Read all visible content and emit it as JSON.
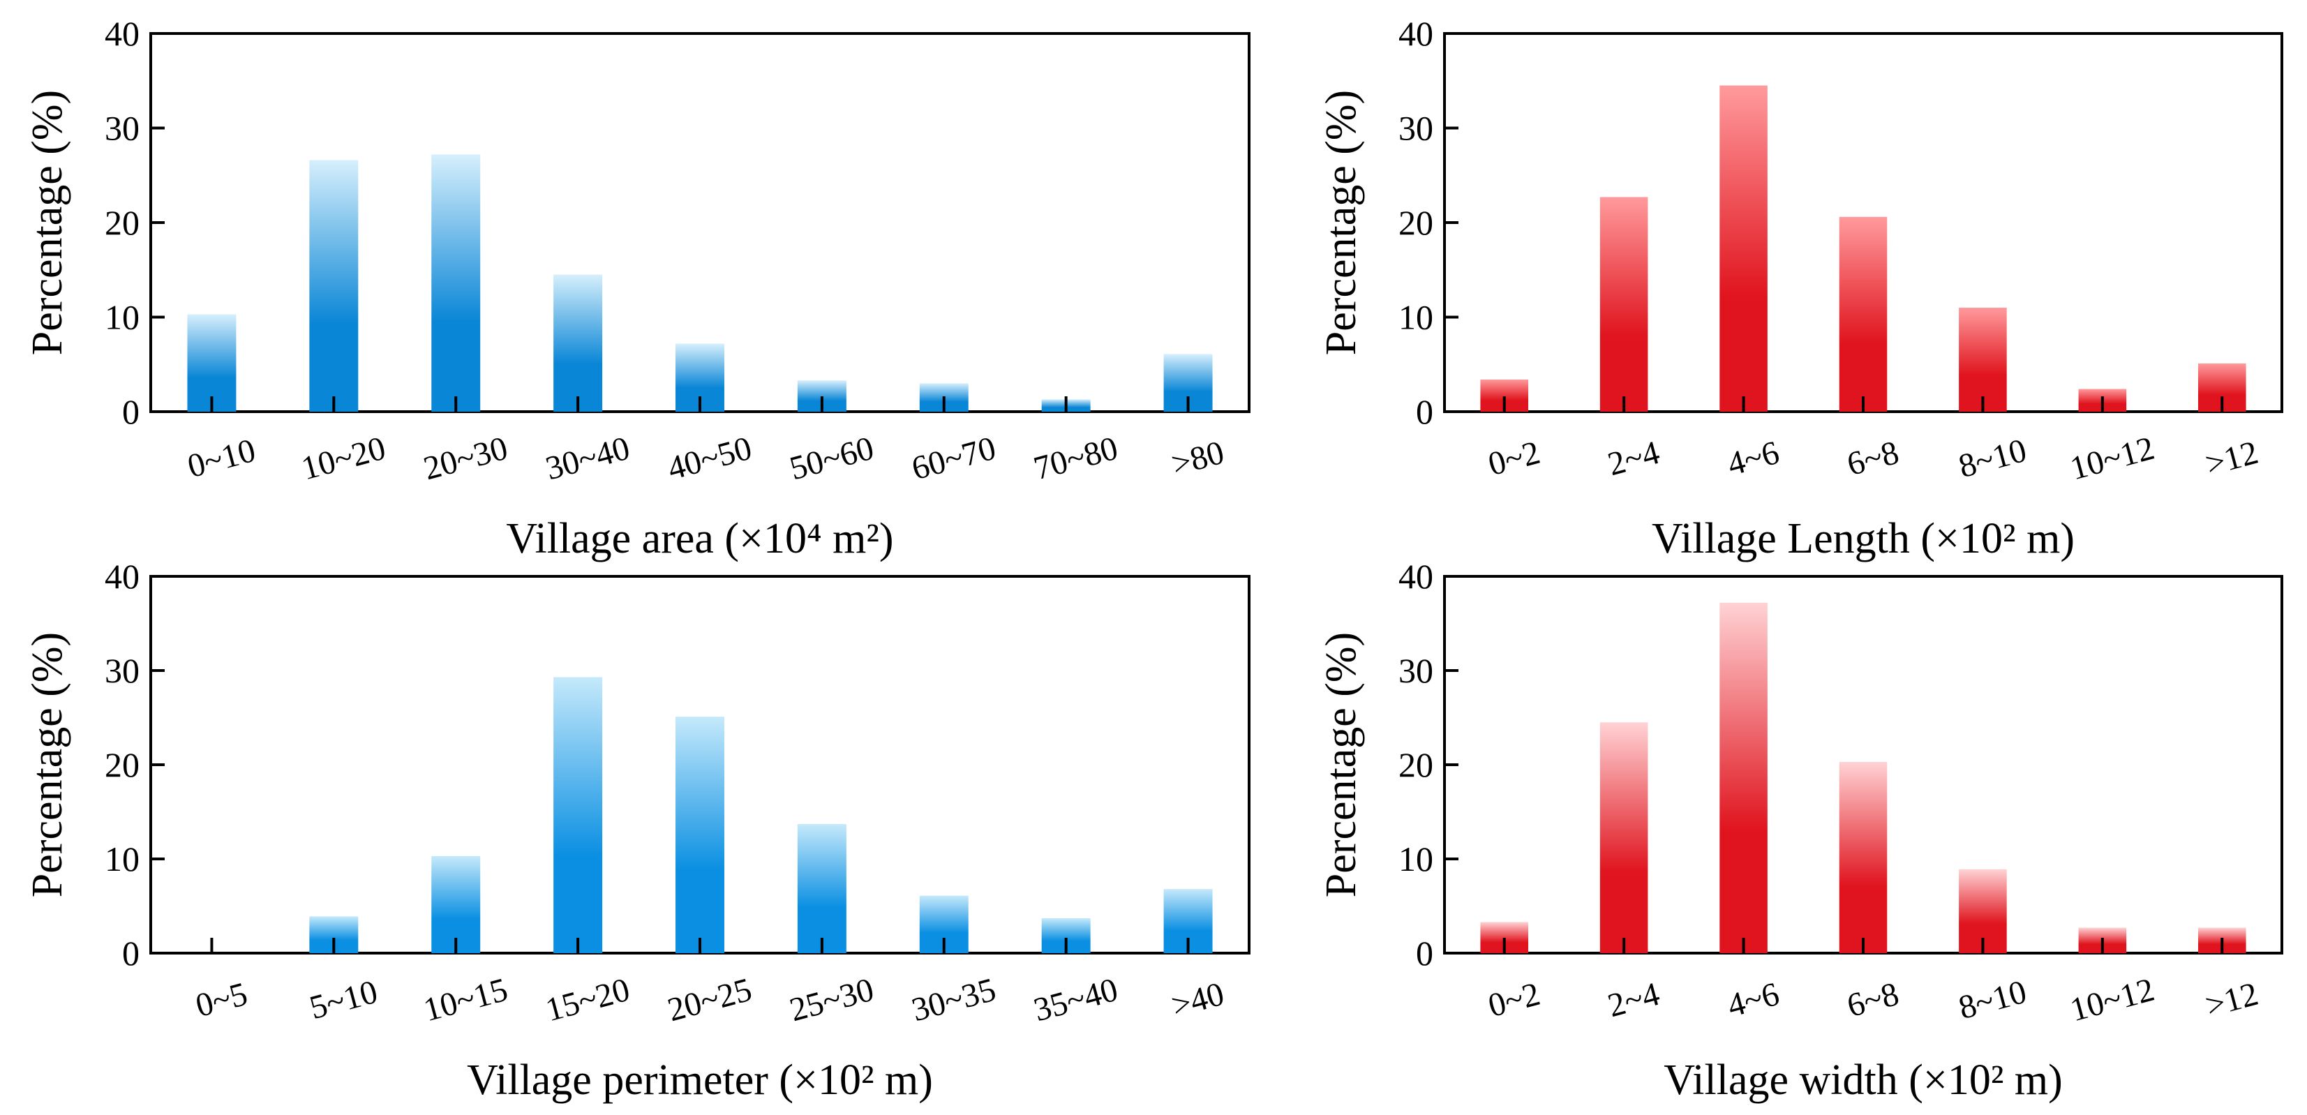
{
  "chart_data": [
    {
      "type": "bar",
      "title": "",
      "xlabel": "Village area (×10⁴ m²)",
      "ylabel": "Percentage (%)",
      "categories": [
        "0~10",
        "10~20",
        "20~30",
        "30~40",
        "40~50",
        "50~60",
        "60~70",
        "70~80",
        ">80"
      ],
      "values": [
        10.3,
        26.6,
        27.2,
        14.5,
        7.2,
        3.3,
        3.0,
        1.3,
        6.1
      ],
      "ylim": [
        0,
        40
      ],
      "yticks": [
        "0",
        "10",
        "20",
        "30",
        "40"
      ],
      "grid": false,
      "colors": {
        "top": "#d6effc",
        "bottom": "#0a86d6"
      }
    },
    {
      "type": "bar",
      "title": "",
      "xlabel": "Village Length (×10² m)",
      "ylabel": "Percentage (%)",
      "categories": [
        "0~2",
        "2~4",
        "4~6",
        "6~8",
        "8~10",
        "10~12",
        ">12"
      ],
      "values": [
        3.4,
        22.7,
        34.5,
        20.6,
        11.0,
        2.4,
        5.1
      ],
      "ylim": [
        0,
        40
      ],
      "yticks": [
        "0",
        "10",
        "20",
        "30",
        "40"
      ],
      "grid": false,
      "colors": {
        "top": "#ff9a9c",
        "bottom": "#e0141e"
      }
    },
    {
      "type": "bar",
      "title": "",
      "xlabel": "Village perimeter (×10² m)",
      "ylabel": "Percentage (%)",
      "categories": [
        "0~5",
        "5~10",
        "10~15",
        "15~20",
        "20~25",
        "25~30",
        "30~35",
        "35~40",
        ">40"
      ],
      "values": [
        0,
        3.9,
        10.3,
        29.3,
        25.1,
        13.7,
        6.1,
        3.7,
        6.8
      ],
      "ylim": [
        0,
        40
      ],
      "yticks": [
        "0",
        "10",
        "20",
        "30",
        "40"
      ],
      "grid": false,
      "colors": {
        "top": "#c5e9fb",
        "bottom": "#0a8fe2"
      }
    },
    {
      "type": "bar",
      "title": "",
      "xlabel": "Village width (×10² m)",
      "ylabel": "Percentage (%)",
      "categories": [
        "0~2",
        "2~4",
        "4~6",
        "6~8",
        "8~10",
        "10~12",
        ">12"
      ],
      "values": [
        3.3,
        24.5,
        37.2,
        20.3,
        8.9,
        2.7,
        2.7
      ],
      "ylim": [
        0,
        40
      ],
      "yticks": [
        "0",
        "10",
        "20",
        "30",
        "40"
      ],
      "grid": false,
      "colors": {
        "top": "#ffd2d4",
        "bottom": "#e0141e"
      }
    }
  ]
}
